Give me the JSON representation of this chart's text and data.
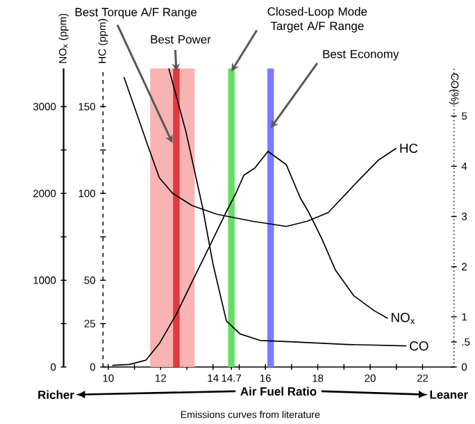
{
  "chart_data": {
    "type": "line",
    "xlabel": "Air Fuel Ratio",
    "ylabel": "NO$_{x}$ (ppm)",
    "y2label": "HC (ppm)",
    "y3label": "CO(%)",
    "xlim": [
      9.8,
      23.2
    ],
    "xticks": [
      10,
      {
        "value": 11,
        "label": null
      },
      12,
      {
        "value": 13,
        "label": null
      },
      14,
      14.7,
      {
        "value": 15,
        "label": null
      },
      16,
      {
        "value": 17,
        "label": null
      },
      18,
      {
        "value": 19,
        "label": null
      },
      20,
      {
        "value": 21,
        "label": null
      },
      22
    ],
    "ylim": [
      0,
      3440
    ],
    "yticks": [
      0,
      {
        "value": 500,
        "label": null
      },
      1000,
      {
        "value": 1500,
        "label": null
      },
      2000,
      {
        "value": 2500,
        "label": null
      },
      3000
    ],
    "y2lim": [
      0,
      172
    ],
    "y2ticks": [
      0,
      25,
      50,
      {
        "value": 75,
        "label": null
      },
      100,
      {
        "value": 125,
        "label": null
      },
      150
    ],
    "y3lim": [
      0,
      5.95
    ],
    "y3ticks": [
      0,
      {
        "value": 0.5,
        "label": ".5"
      },
      1,
      2,
      3,
      4,
      5
    ],
    "series": [
      {
        "name": "NO$_{x}$",
        "color": "#000000",
        "axis": "y",
        "x": [
          10.15,
          10.8,
          11.44,
          11.95,
          12.62,
          13.23,
          13.85,
          14.51,
          14.87,
          15.18,
          15.59,
          16.1,
          16.8,
          17.33,
          17.64,
          18.15,
          18.67,
          19.38,
          20.15,
          20.67
        ],
        "values": [
          20,
          30,
          80,
          270,
          620,
          1000,
          1380,
          1790,
          2000,
          2210,
          2290,
          2485,
          2330,
          1950,
          1790,
          1480,
          1120,
          820,
          650,
          560
        ]
      },
      {
        "name": "HC",
        "color": "#000000",
        "axis": "y2",
        "x": [
          10.6,
          11.5,
          11.95,
          12.46,
          13.2,
          14.15,
          15.5,
          16.8,
          17.6,
          18.4,
          19.4,
          20.3,
          21.0
        ],
        "values": [
          167,
          128,
          109,
          100,
          93,
          88,
          84,
          81,
          84,
          89,
          105,
          119,
          126
        ]
      },
      {
        "name": "CO",
        "color": "#000000",
        "axis": "y3",
        "x": [
          12.31,
          12.97,
          13.59,
          14.0,
          14.51,
          15.03,
          15.8,
          17.08,
          19.13,
          21.38
        ],
        "values": [
          5.95,
          4.68,
          3.21,
          2.05,
          0.92,
          0.66,
          0.53,
          0.5,
          0.45,
          0.42
        ]
      }
    ],
    "bands": [
      {
        "axis": "x",
        "from": 11.6,
        "to": 13.3,
        "label": "Best Torque A/F Range",
        "color": "#f9b3b3"
      }
    ],
    "ref_lines": [
      {
        "axis": "x",
        "value": 12.6,
        "label": "Best Power",
        "color": "#e0393e"
      },
      {
        "axis": "x",
        "value": 14.7,
        "label": "Closed-Loop Mode Target A/F Range",
        "color": "#66dd66"
      },
      {
        "axis": "x",
        "value": 16.2,
        "label": "Best Economy",
        "color": "#7b7bff"
      }
    ],
    "annotations": [
      "Richer",
      "Leaner",
      "Emissions curves from literature"
    ]
  }
}
